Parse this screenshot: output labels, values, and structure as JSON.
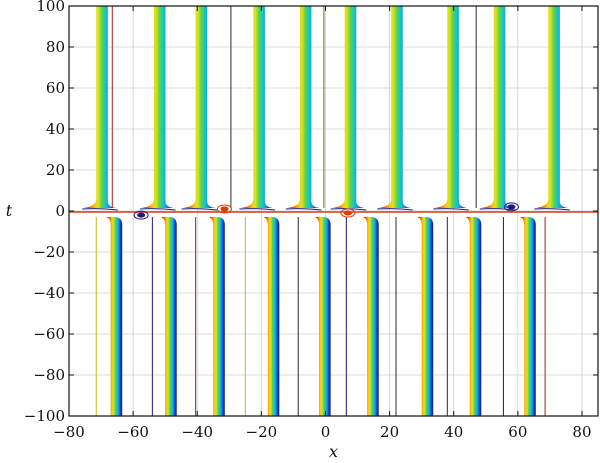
{
  "chart_data": {
    "type": "contour",
    "title": "",
    "xlabel": "x",
    "ylabel": "t",
    "xlim": [
      -80,
      85
    ],
    "ylim": [
      -100,
      100
    ],
    "xticks": [
      -80,
      -60,
      -40,
      -20,
      0,
      20,
      40,
      60,
      80
    ],
    "xtick_labels": [
      "−80",
      "−60",
      "−40",
      "−20",
      "0",
      "20",
      "40",
      "60",
      "80"
    ],
    "yticks": [
      -100,
      -80,
      -60,
      -40,
      -20,
      0,
      20,
      40,
      60,
      80,
      100
    ],
    "ytick_labels": [
      "−100",
      "−80",
      "−60",
      "−40",
      "−20",
      "0",
      "20",
      "40",
      "60",
      "80",
      "100"
    ],
    "grid": true,
    "colormap": [
      "#c8000a",
      "#e03a00",
      "#f47a00",
      "#ffc21a",
      "#d4e81a",
      "#5fd24a",
      "#14c8c8",
      "#1496e6",
      "#143cc8",
      "#1e1878"
    ],
    "upper_stripes_x": [
      -71.5,
      -53.5,
      -40.5,
      -22.5,
      -8,
      6,
      20.5,
      38,
      52.5,
      69.5
    ],
    "lower_stripes_x": [
      -67,
      -50,
      -35,
      -18,
      -2,
      13,
      30,
      45,
      62
    ],
    "stripe_width": 3.6,
    "collision_t": 0,
    "thin_lines": [
      {
        "x": -66.5,
        "color": "#a02020",
        "part": "upper"
      },
      {
        "x": -29.5,
        "color": "#2c2c2c",
        "part": "upper"
      },
      {
        "x": -0.5,
        "color": "#4a7a2a",
        "part": "upper"
      },
      {
        "x": 47,
        "color": "#2c2c2c",
        "part": "upper"
      },
      {
        "x": -71.5,
        "color": "#b8c018",
        "part": "lower"
      },
      {
        "x": -54,
        "color": "#1e1878",
        "part": "lower"
      },
      {
        "x": -40.5,
        "color": "#a02020",
        "part": "lower"
      },
      {
        "x": -25,
        "color": "#b8c018",
        "part": "lower"
      },
      {
        "x": -8.5,
        "color": "#2c2c2c",
        "part": "lower"
      },
      {
        "x": 6.5,
        "color": "#1e1878",
        "part": "lower"
      },
      {
        "x": 22,
        "color": "#2c2c2c",
        "part": "lower"
      },
      {
        "x": 38,
        "color": "#2c2c2c",
        "part": "lower"
      },
      {
        "x": 55.5,
        "color": "#1e1878",
        "part": "lower"
      },
      {
        "x": 68.5,
        "color": "#a02020",
        "part": "lower"
      }
    ],
    "peaks": [
      {
        "x": -57.5,
        "t": -2,
        "color": "#1e1878"
      },
      {
        "x": 58,
        "t": 2,
        "color": "#1e1878"
      },
      {
        "x": -31.5,
        "t": 1,
        "color": "#e03a00"
      },
      {
        "x": 7,
        "t": -1,
        "color": "#e03a00"
      }
    ]
  }
}
